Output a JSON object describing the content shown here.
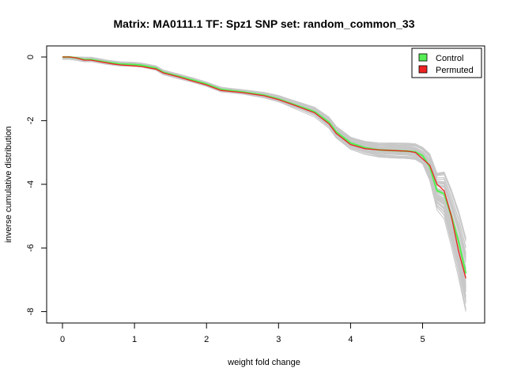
{
  "chart_data": {
    "type": "line",
    "title": "Matrix: MA0111.1 TF: Spz1 SNP set: random_common_33",
    "xlabel": "weight fold change",
    "ylabel": "inverse cumulative distribution",
    "xlim": [
      0,
      5.6
    ],
    "ylim": [
      -8,
      0
    ],
    "x_ticks": [
      "0",
      "1",
      "2",
      "3",
      "4",
      "5"
    ],
    "y_ticks": [
      "0",
      "-2",
      "-4",
      "-6",
      "-8"
    ],
    "grid": false,
    "legend_position": "top-right",
    "background_band_color": "#c8c8c8",
    "series": [
      {
        "name": "Control",
        "color": "#55ee55",
        "x": [
          0,
          0.1,
          0.2,
          0.3,
          0.4,
          0.5,
          0.6,
          0.7,
          0.8,
          1.0,
          1.1,
          1.3,
          1.4,
          1.6,
          1.8,
          2.0,
          2.2,
          2.5,
          2.8,
          3.0,
          3.2,
          3.5,
          3.7,
          3.8,
          4.0,
          4.2,
          4.4,
          4.6,
          4.8,
          4.9,
          5.0,
          5.1,
          5.2,
          5.3,
          5.4,
          5.5,
          5.6
        ],
        "y": [
          0,
          0,
          -0.03,
          -0.08,
          -0.08,
          -0.12,
          -0.16,
          -0.19,
          -0.22,
          -0.24,
          -0.26,
          -0.35,
          -0.48,
          -0.6,
          -0.72,
          -0.85,
          -1.02,
          -1.1,
          -1.2,
          -1.32,
          -1.48,
          -1.72,
          -2.05,
          -2.35,
          -2.7,
          -2.85,
          -2.92,
          -2.94,
          -2.96,
          -2.98,
          -3.1,
          -3.45,
          -4.2,
          -4.3,
          -5.0,
          -5.8,
          -6.8
        ]
      },
      {
        "name": "Permuted",
        "color": "#ee2222",
        "x": [
          0,
          0.1,
          0.2,
          0.3,
          0.4,
          0.5,
          0.6,
          0.7,
          0.8,
          1.0,
          1.1,
          1.3,
          1.4,
          1.6,
          1.8,
          2.0,
          2.2,
          2.5,
          2.8,
          3.0,
          3.2,
          3.5,
          3.7,
          3.8,
          4.0,
          4.2,
          4.4,
          4.6,
          4.8,
          4.9,
          5.0,
          5.1,
          5.2,
          5.3,
          5.4,
          5.5,
          5.6
        ],
        "y": [
          0,
          0,
          -0.03,
          -0.1,
          -0.1,
          -0.14,
          -0.18,
          -0.22,
          -0.25,
          -0.28,
          -0.3,
          -0.38,
          -0.5,
          -0.62,
          -0.75,
          -0.88,
          -1.05,
          -1.12,
          -1.22,
          -1.34,
          -1.5,
          -1.75,
          -2.1,
          -2.4,
          -2.75,
          -2.88,
          -2.92,
          -2.94,
          -2.96,
          -3.0,
          -3.2,
          -3.4,
          -4.0,
          -4.2,
          -5.0,
          -6.1,
          -6.95
        ]
      }
    ]
  }
}
